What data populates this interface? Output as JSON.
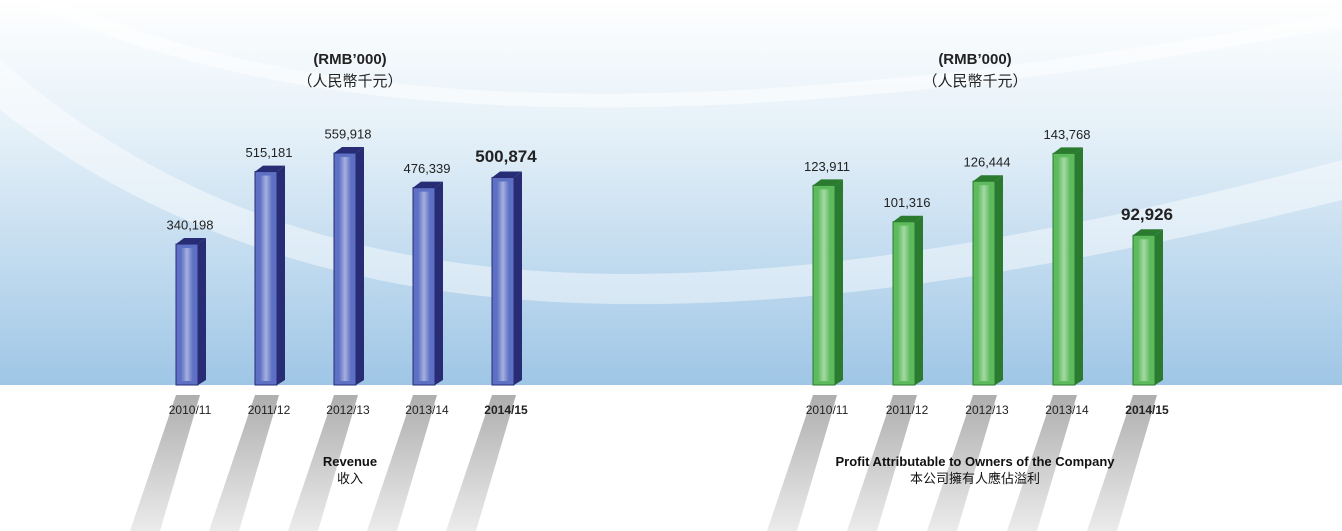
{
  "chart_data": [
    {
      "type": "bar",
      "title": "Revenue",
      "title_zh": "收入",
      "unit": "(RMB’000)",
      "unit_zh": "（人民幣千元）",
      "categories": [
        "2010/11",
        "2011/12",
        "2012/13",
        "2013/14",
        "2014/15"
      ],
      "values": [
        340198,
        515181,
        559918,
        476339,
        500874
      ],
      "value_labels": [
        "340,198",
        "515,181",
        "559,918",
        "476,339",
        "500,874"
      ],
      "color": "#5d70c4",
      "side_color": "#272c74",
      "ylim": [
        0,
        700000
      ]
    },
    {
      "type": "bar",
      "title": "Profit Attributable to Owners of the Company",
      "title_zh": "本公司擁有人應佔溢利",
      "unit": "(RMB’000)",
      "unit_zh": "（人民幣千元）",
      "categories": [
        "2010/11",
        "2011/12",
        "2012/13",
        "2013/14",
        "2014/15"
      ],
      "values": [
        123911,
        101316,
        126444,
        143768,
        92926
      ],
      "value_labels": [
        "123,911",
        "101,316",
        "126,444",
        "143,768",
        "92,926"
      ],
      "color": "#5dbb5e",
      "side_color": "#2a7a2f",
      "ylim": [
        0,
        180000
      ]
    }
  ]
}
